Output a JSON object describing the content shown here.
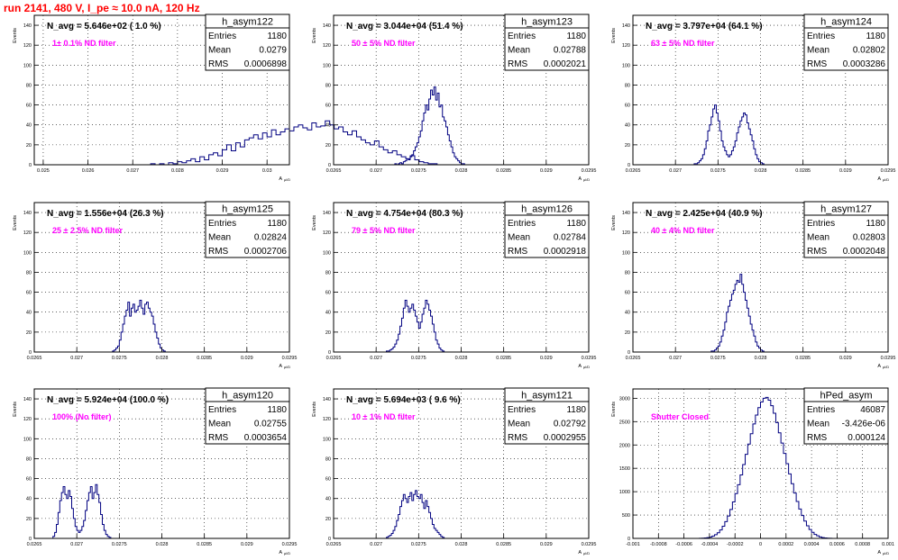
{
  "page_title": "run 2141,   480 V, I_pe ≈ 10.0 nA, 120 Hz",
  "colors": {
    "title": "#ff0000",
    "histogram": "#000080",
    "filter_label": "#ff00ff",
    "frame": "#000000"
  },
  "stat_labels": {
    "entries": "Entries",
    "mean": "Mean",
    "rms": "RMS"
  },
  "x_axis_label": "A",
  "x_axis_label_sub": "μl/D",
  "y_axis_label": "Events",
  "chart_data": [
    {
      "type": "bar",
      "name": "h_asym122",
      "navg": "N_avg = 5.646e+02 ( 1.0 %)",
      "filter": "1± 0.1% ND filter",
      "entries": "1180",
      "mean": "0.0279",
      "rms": "0.0006898",
      "xlim": [
        0.0248,
        0.0305
      ],
      "ylim": [
        0,
        150
      ],
      "xticks": [
        "0.025",
        "0.026",
        "0.027",
        "0.028",
        "0.029",
        "0.03"
      ],
      "xtick_values": [
        0.025,
        0.026,
        0.027,
        0.028,
        0.029,
        0.03
      ],
      "yticks": [
        0,
        20,
        40,
        60,
        80,
        100,
        120,
        140
      ],
      "x_start": 0.0252,
      "bin_width": 0.0001,
      "values": [
        0,
        0,
        0,
        0,
        0,
        0,
        0,
        0,
        0,
        0,
        0,
        0,
        0,
        0,
        0,
        0,
        0,
        0,
        0,
        0,
        0,
        0,
        1,
        0,
        1,
        0,
        2,
        1,
        3,
        2,
        4,
        6,
        3,
        8,
        5,
        10,
        12,
        9,
        15,
        20,
        14,
        22,
        18,
        25,
        27,
        30,
        26,
        32,
        28,
        35,
        30,
        33,
        36,
        34,
        38,
        40,
        37,
        35,
        42,
        38,
        39,
        44,
        40,
        36,
        38,
        33,
        30,
        34,
        28,
        25,
        22,
        20,
        24,
        18,
        15,
        12,
        14,
        10,
        8,
        6,
        9,
        5,
        3,
        2,
        1,
        1,
        0,
        0,
        0
      ]
    },
    {
      "type": "bar",
      "name": "h_asym123",
      "navg": "N_avg = 3.044e+04 (51.4 %)",
      "filter": "50 ± 5% ND filter",
      "entries": "1180",
      "mean": "0.02788",
      "rms": "0.0002021",
      "xlim": [
        0.0265,
        0.0295
      ],
      "ylim": [
        0,
        150
      ],
      "xticks": [
        "0.0265",
        "0.027",
        "0.0275",
        "0.028",
        "0.0285",
        "0.029",
        "0.0295"
      ],
      "xtick_values": [
        0.0265,
        0.027,
        0.0275,
        0.028,
        0.0285,
        0.029,
        0.0295
      ],
      "yticks": [
        0,
        20,
        40,
        60,
        80,
        100,
        120,
        140
      ],
      "x_start": 0.0272,
      "bin_width": 2e-05,
      "values": [
        0,
        1,
        0,
        1,
        2,
        1,
        3,
        4,
        6,
        5,
        8,
        10,
        14,
        18,
        22,
        28,
        34,
        44,
        52,
        60,
        55,
        66,
        75,
        70,
        78,
        65,
        72,
        58,
        60,
        48,
        44,
        38,
        30,
        24,
        18,
        12,
        8,
        6,
        4,
        2,
        1,
        1,
        0
      ]
    },
    {
      "type": "bar",
      "name": "h_asym124",
      "navg": "N_avg = 3.797e+04 (64.1 %)",
      "filter": "63 ± 5% ND filter",
      "entries": "1180",
      "mean": "0.02802",
      "rms": "0.0003286",
      "xlim": [
        0.0265,
        0.0295
      ],
      "ylim": [
        0,
        150
      ],
      "xticks": [
        "0.0265",
        "0.027",
        "0.0275",
        "0.028",
        "0.0285",
        "0.029",
        "0.0295"
      ],
      "xtick_values": [
        0.0265,
        0.027,
        0.0275,
        0.028,
        0.0285,
        0.029,
        0.0295
      ],
      "yticks": [
        0,
        20,
        40,
        60,
        80,
        100,
        120,
        140
      ],
      "x_start": 0.0272,
      "bin_width": 2e-05,
      "values": [
        0,
        1,
        1,
        2,
        4,
        6,
        10,
        16,
        24,
        34,
        40,
        48,
        56,
        60,
        52,
        44,
        34,
        24,
        18,
        14,
        10,
        8,
        10,
        14,
        18,
        24,
        32,
        38,
        44,
        48,
        52,
        50,
        42,
        36,
        30,
        24,
        16,
        10,
        6,
        3,
        2,
        1,
        0,
        0
      ]
    },
    {
      "type": "bar",
      "name": "h_asym125",
      "navg": "N_avg = 1.556e+04 (26.3 %)",
      "filter": "25 ± 2.5% ND filter",
      "entries": "1180",
      "mean": "0.02824",
      "rms": "0.0002706",
      "xlim": [
        0.0265,
        0.0295
      ],
      "ylim": [
        0,
        150
      ],
      "xticks": [
        "0.0265",
        "0.027",
        "0.0275",
        "0.028",
        "0.0285",
        "0.029",
        "0.0295"
      ],
      "xtick_values": [
        0.0265,
        0.027,
        0.0275,
        0.028,
        0.0285,
        0.029,
        0.0295
      ],
      "yticks": [
        0,
        20,
        40,
        60,
        80,
        100,
        120,
        140
      ],
      "x_start": 0.0274,
      "bin_width": 2e-05,
      "values": [
        0,
        1,
        2,
        4,
        6,
        12,
        20,
        28,
        36,
        42,
        50,
        36,
        44,
        48,
        40,
        42,
        46,
        52,
        44,
        38,
        48,
        50,
        44,
        40,
        36,
        28,
        20,
        14,
        8,
        4,
        2,
        1,
        0
      ]
    },
    {
      "type": "bar",
      "name": "h_asym126",
      "navg": "N_avg = 4.754e+04 (80.3 %)",
      "filter": "79 ± 5% ND filter",
      "entries": "1180",
      "mean": "0.02784",
      "rms": "0.0002918",
      "xlim": [
        0.0265,
        0.0295
      ],
      "ylim": [
        0,
        150
      ],
      "xticks": [
        "0.0265",
        "0.027",
        "0.0275",
        "0.028",
        "0.0285",
        "0.029",
        "0.0295"
      ],
      "xtick_values": [
        0.0265,
        0.027,
        0.0275,
        0.028,
        0.0285,
        0.029,
        0.0295
      ],
      "yticks": [
        0,
        20,
        40,
        60,
        80,
        100,
        120,
        140
      ],
      "x_start": 0.0271,
      "bin_width": 2e-05,
      "values": [
        0,
        1,
        1,
        2,
        3,
        5,
        8,
        12,
        18,
        26,
        34,
        44,
        52,
        46,
        40,
        44,
        48,
        42,
        36,
        30,
        24,
        30,
        38,
        44,
        52,
        48,
        42,
        36,
        28,
        20,
        12,
        8,
        4,
        2,
        1,
        0
      ]
    },
    {
      "type": "bar",
      "name": "h_asym127",
      "navg": "N_avg = 2.425e+04 (40.9 %)",
      "filter": "40 ± 4% ND filter",
      "entries": "1180",
      "mean": "0.02803",
      "rms": "0.0002048",
      "xlim": [
        0.0265,
        0.0295
      ],
      "ylim": [
        0,
        150
      ],
      "xticks": [
        "0.0265",
        "0.027",
        "0.0275",
        "0.028",
        "0.0285",
        "0.029",
        "0.0295"
      ],
      "xtick_values": [
        0.0265,
        0.027,
        0.0275,
        0.028,
        0.0285,
        0.029,
        0.0295
      ],
      "yticks": [
        0,
        20,
        40,
        60,
        80,
        100,
        120,
        140
      ],
      "x_start": 0.0274,
      "bin_width": 2e-05,
      "values": [
        0,
        1,
        1,
        2,
        4,
        6,
        10,
        16,
        22,
        30,
        40,
        46,
        52,
        58,
        62,
        68,
        72,
        70,
        78,
        68,
        60,
        52,
        44,
        36,
        28,
        22,
        16,
        10,
        6,
        4,
        2,
        1,
        0,
        0
      ]
    },
    {
      "type": "bar",
      "name": "h_asym120",
      "navg": "N_avg = 5.924e+04 (100.0 %)",
      "filter": "100% (No filter)",
      "entries": "1180",
      "mean": "0.02755",
      "rms": "0.0003654",
      "xlim": [
        0.0265,
        0.0295
      ],
      "ylim": [
        0,
        150
      ],
      "xticks": [
        "0.0265",
        "0.027",
        "0.0275",
        "0.028",
        "0.0285",
        "0.029",
        "0.0295"
      ],
      "xtick_values": [
        0.0265,
        0.027,
        0.0275,
        0.028,
        0.0285,
        0.029,
        0.0295
      ],
      "yticks": [
        0,
        20,
        40,
        60,
        80,
        100,
        120,
        140
      ],
      "x_start": 0.0267,
      "bin_width": 2e-05,
      "values": [
        0,
        2,
        6,
        14,
        26,
        38,
        46,
        52,
        44,
        40,
        48,
        42,
        30,
        20,
        12,
        8,
        6,
        8,
        12,
        18,
        28,
        38,
        46,
        52,
        40,
        46,
        54,
        44,
        36,
        24,
        14,
        8,
        4,
        2,
        1,
        0
      ]
    },
    {
      "type": "bar",
      "name": "h_asym121",
      "navg": "N_avg = 5.694e+03 ( 9.6 %)",
      "filter": "10 ± 1% ND filter",
      "entries": "1180",
      "mean": "0.02792",
      "rms": "0.0002955",
      "xlim": [
        0.0265,
        0.0295
      ],
      "ylim": [
        0,
        150
      ],
      "xticks": [
        "0.0265",
        "0.027",
        "0.0275",
        "0.028",
        "0.0285",
        "0.029",
        "0.0295"
      ],
      "xtick_values": [
        0.0265,
        0.027,
        0.0275,
        0.028,
        0.0285,
        0.029,
        0.0295
      ],
      "yticks": [
        0,
        20,
        40,
        60,
        80,
        100,
        120,
        140
      ],
      "x_start": 0.0271,
      "bin_width": 2e-05,
      "values": [
        0,
        1,
        2,
        3,
        5,
        8,
        12,
        18,
        24,
        32,
        38,
        44,
        40,
        36,
        42,
        46,
        38,
        44,
        48,
        42,
        40,
        44,
        36,
        30,
        38,
        32,
        26,
        20,
        14,
        10,
        8,
        6,
        4,
        2,
        1,
        0
      ]
    },
    {
      "type": "bar",
      "name": "hPed_asym",
      "navg": "",
      "filter": "Shutter Closed",
      "entries": "46087",
      "mean": "-3.426e-06",
      "rms": "0.000124",
      "xlim": [
        -0.001,
        0.001
      ],
      "ylim": [
        0,
        3200
      ],
      "xticks": [
        "-0.001",
        "-0.0008",
        "-0.0006",
        "-0.0004",
        "-0.0002",
        "0",
        "0.0002",
        "0.0004",
        "0.0006",
        "0.0008",
        "0.001"
      ],
      "xtick_values": [
        -0.001,
        -0.0008,
        -0.0006,
        -0.0004,
        -0.0002,
        0,
        0.0002,
        0.0004,
        0.0006,
        0.0008,
        0.001
      ],
      "yticks": [
        0,
        500,
        1000,
        1500,
        2000,
        2500,
        3000
      ],
      "x_start": -0.0005,
      "bin_width": 2e-05,
      "values": [
        0,
        2,
        5,
        10,
        18,
        30,
        50,
        80,
        120,
        180,
        260,
        360,
        480,
        620,
        780,
        960,
        1150,
        1360,
        1580,
        1800,
        2020,
        2240,
        2450,
        2640,
        2800,
        2920,
        3000,
        3020,
        2960,
        2840,
        2680,
        2480,
        2260,
        2040,
        1820,
        1600,
        1380,
        1170,
        970,
        790,
        630,
        490,
        370,
        270,
        190,
        130,
        85,
        55,
        32,
        18,
        10,
        5,
        2,
        0
      ]
    }
  ]
}
